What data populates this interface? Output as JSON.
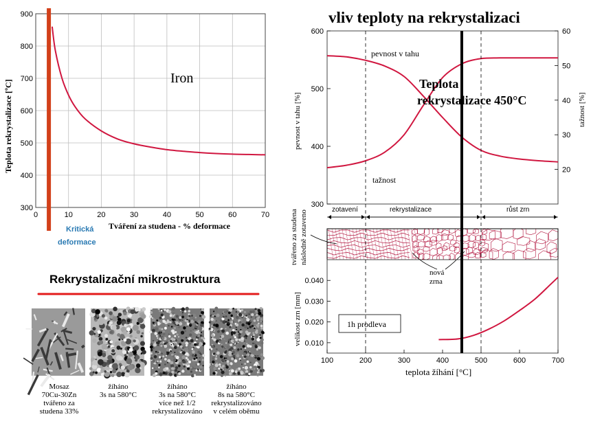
{
  "chart_data": [
    {
      "type": "line",
      "title": "Iron",
      "xlabel": "Tváření za studena - % deformace",
      "ylabel": "Teplota rekrystalizace [ºC]",
      "xlim": [
        0,
        70
      ],
      "ylim": [
        300,
        900
      ],
      "xticks": [
        "0",
        "10",
        "20",
        "30",
        "40",
        "50",
        "60",
        "70"
      ],
      "yticks": [
        "300",
        "400",
        "500",
        "600",
        "700",
        "800",
        "900"
      ],
      "grid": true,
      "series": [
        {
          "x": [
            5,
            6,
            8,
            10,
            12,
            15,
            20,
            25,
            30,
            35,
            40,
            45,
            50,
            55,
            60,
            65,
            70
          ],
          "y": [
            860,
            785,
            700,
            648,
            612,
            575,
            537,
            512,
            497,
            487,
            479,
            474,
            470,
            467,
            465,
            464,
            463
          ]
        }
      ],
      "annotation": {
        "label": "Kritická deformace",
        "x": 4,
        "color": "#d2401a"
      }
    },
    {
      "type": "line",
      "title": "vliv teploty na rekrystalizaci",
      "xlabel": "teplota žíhání [°C]",
      "xlim": [
        100,
        700
      ],
      "xticks": [
        "100",
        "200",
        "300",
        "400",
        "500",
        "600",
        "700"
      ],
      "top_panel": {
        "ylabel_left": "pevnost v tahu [%]",
        "ylabel_right": "tažnost [%]",
        "ylim_left": [
          300,
          600
        ],
        "ylim_right": [
          10,
          60
        ],
        "yticks_left": [
          "300",
          "400",
          "500",
          "600"
        ],
        "yticks_right": [
          "20",
          "30",
          "40",
          "50",
          "60"
        ],
        "series": [
          {
            "name": "pevnost v tahu",
            "axis": "left",
            "x": [
              100,
              150,
              200,
              250,
              300,
              350,
              400,
              450,
              500,
              550,
              600,
              650,
              700
            ],
            "y": [
              557,
              555,
              549,
              539,
              521,
              487,
              450,
              416,
              393,
              383,
              378,
              375,
              373
            ]
          },
          {
            "name": "tažnost",
            "axis": "right",
            "x": [
              100,
              150,
              200,
              250,
              300,
              350,
              400,
              450,
              500,
              550,
              600,
              650,
              700
            ],
            "y": [
              20.5,
              21.2,
              22.5,
              25,
              30,
              38.5,
              46.5,
              50.5,
              52,
              52.2,
              52.2,
              52.2,
              52.2
            ]
          }
        ],
        "annotation": "Teplota rekrystalizace 450°C"
      },
      "regions": [
        "zotavení",
        "rekrystalizace",
        "růst zrn"
      ],
      "structure_labels": {
        "left": "tvářeno za studena následně zotaveno",
        "new_grains": "nová zrna"
      },
      "bottom_panel": {
        "ylabel": "velikost zrn [mm]",
        "ylim": [
          0.005,
          0.05
        ],
        "yticks": [
          "0.010",
          "0.020",
          "0.030",
          "0.040"
        ],
        "series": [
          {
            "x": [
              390,
              440,
              480,
              520,
              560,
              600,
              640,
              680,
              700
            ],
            "y": [
              0.0115,
              0.0118,
              0.0135,
              0.0165,
              0.0205,
              0.0255,
              0.031,
              0.038,
              0.0415
            ]
          }
        ],
        "box_label": "1h prodleva"
      },
      "markers": {
        "dashed_x": [
          200,
          500
        ],
        "solid_x": 450
      }
    }
  ],
  "micro": {
    "title": "Rekrystalizační mikrostruktura",
    "items": [
      {
        "label_lines": [
          "Mosaz",
          "70Cu-30Zn",
          "tvářeno za",
          "studena 33%"
        ]
      },
      {
        "label_lines": [
          "žíháno",
          "3s na 580°C"
        ]
      },
      {
        "label_lines": [
          "žíháno",
          "3s na 580°C",
          "více než 1/2",
          "rekrystalizováno"
        ]
      },
      {
        "label_lines": [
          "žíháno",
          "8s na 580°C",
          "rekrystalizováno",
          "v celém oběmu"
        ]
      }
    ]
  },
  "colors": {
    "curve": "#d0163f",
    "critical": "#d2401a",
    "critical_text": "#2a7ab3",
    "grid": "#bdbdbd",
    "underline": "#e31b1b"
  }
}
